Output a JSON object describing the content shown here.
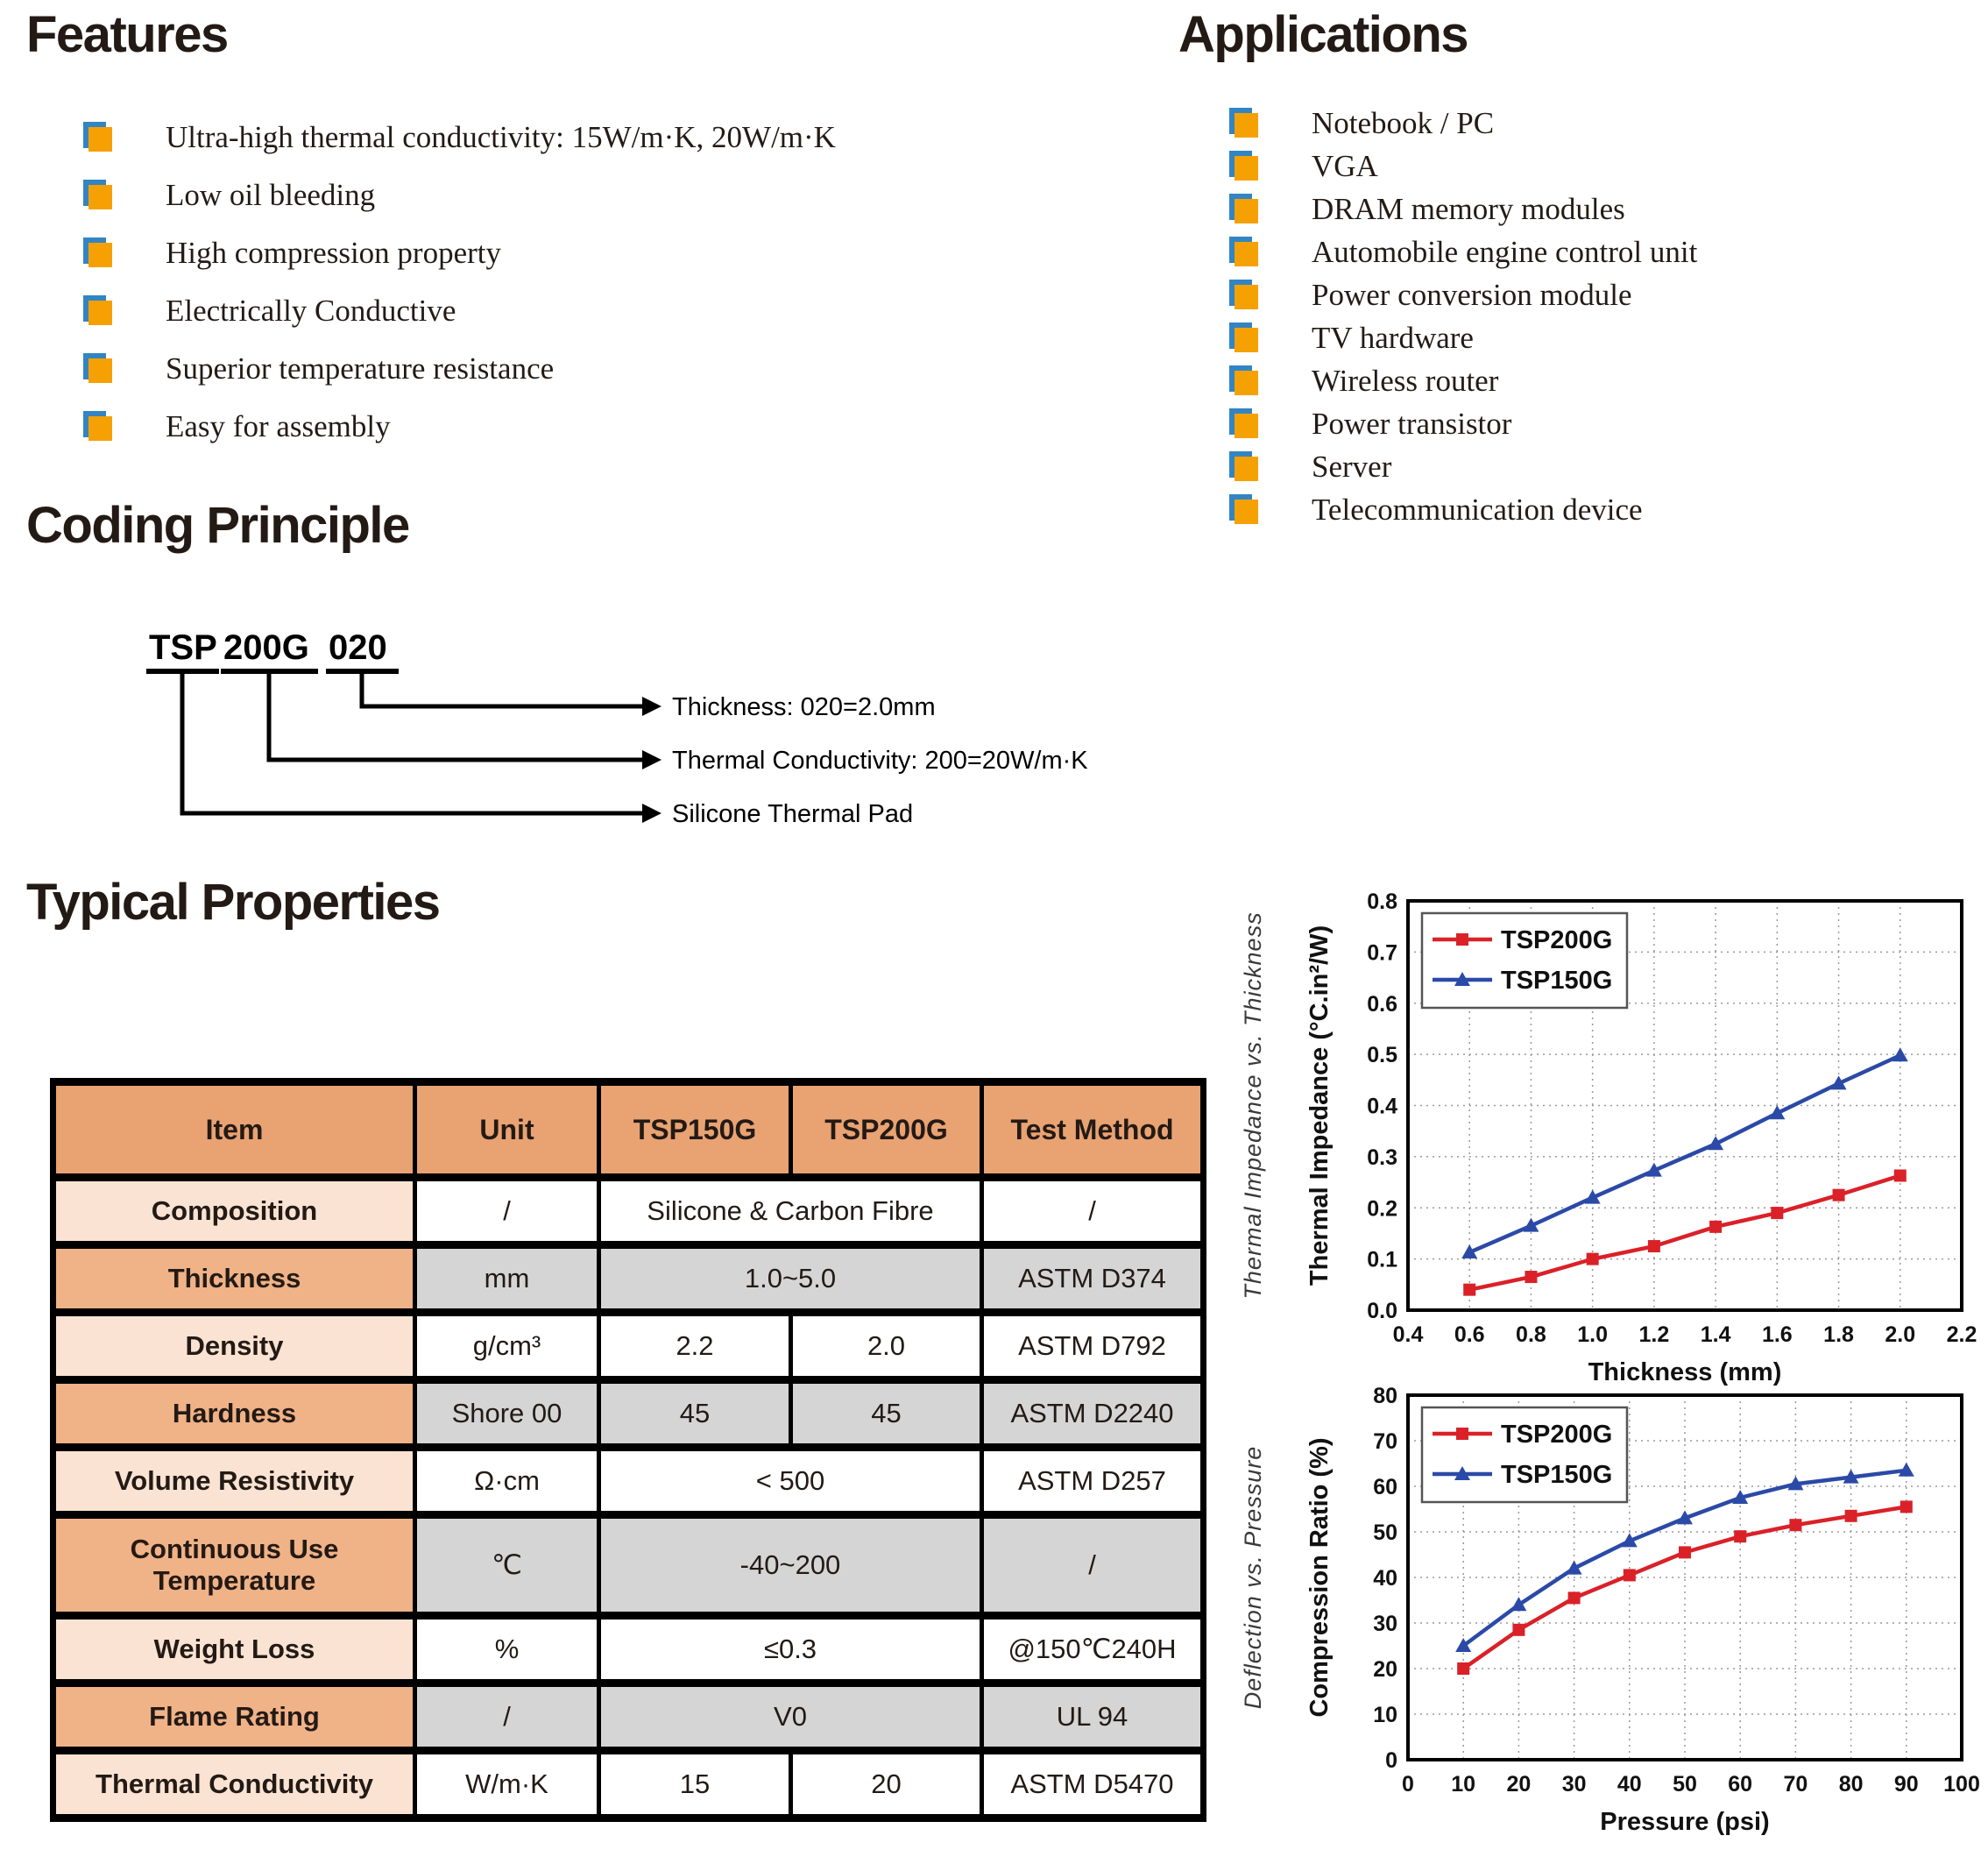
{
  "features": {
    "title": "Features",
    "items": [
      "Ultra-high thermal conductivity: 15W/m·K, 20W/m·K",
      "Low oil bleeding",
      "High compression property",
      "Electrically Conductive",
      "Superior temperature resistance",
      "Easy for assembly"
    ]
  },
  "applications": {
    "title": "Applications",
    "items": [
      "Notebook / PC",
      "VGA",
      "DRAM memory modules",
      "Automobile engine control unit",
      "Power conversion module",
      "TV hardware",
      "Wireless router",
      "Power transistor",
      "Server",
      "Telecommunication device"
    ]
  },
  "coding": {
    "title": "Coding Principle",
    "parts": [
      "TSP",
      "200G",
      "020"
    ],
    "labels": [
      "Thickness: 020=2.0mm",
      "Thermal Conductivity: 200=20W/m·K",
      "Silicone Thermal Pad"
    ]
  },
  "properties": {
    "title": "Typical Properties",
    "headers": [
      "Item",
      "Unit",
      "TSP150G",
      "TSP200G",
      "Test Method"
    ],
    "rows": [
      {
        "item": "Composition",
        "unit": "/",
        "value": "Silicone & Carbon Fibre",
        "test": "/"
      },
      {
        "item": "Thickness",
        "unit": "mm",
        "value": "1.0~5.0",
        "test": "ASTM D374"
      },
      {
        "item": "Density",
        "unit": "g/cm³",
        "tsp150g": "2.2",
        "tsp200g": "2.0",
        "test": "ASTM D792"
      },
      {
        "item": "Hardness",
        "unit": "Shore 00",
        "tsp150g": "45",
        "tsp200g": "45",
        "test": "ASTM D2240"
      },
      {
        "item": "Volume Resistivity",
        "unit": "Ω·cm",
        "value": "< 500",
        "test": "ASTM D257"
      },
      {
        "item": "Continuous Use Temperature",
        "unit": "℃",
        "value": "-40~200",
        "test": "/"
      },
      {
        "item": "Weight Loss",
        "unit": "%",
        "value": "≤0.3",
        "test": "@150℃240H"
      },
      {
        "item": "Flame Rating",
        "unit": "/",
        "value": "V0",
        "test": "UL 94"
      },
      {
        "item": "Thermal Conductivity",
        "unit": "W/m·K",
        "tsp150g": "15",
        "tsp200g": "20",
        "test": "ASTM D5470"
      }
    ]
  },
  "colors": {
    "bullet_orange": "#f5a104",
    "bullet_blue": "#3285c2",
    "table_header": "#e9a272",
    "row_item_light": "#fae3d2",
    "row_item_dark": "#f0b287",
    "cell_gray": "#d5d5d5",
    "series_red": "#da2128",
    "series_blue": "#2b4aa7"
  },
  "chart_data": [
    {
      "type": "line",
      "outer_label": "Thermal Impedance vs.  Thickness",
      "x_axis": {
        "label": "Thickness (mm)",
        "min": 0.4,
        "max": 2.2,
        "ticks": [
          "0.4",
          "0.6",
          "0.8",
          "1.0",
          "1.2",
          "1.4",
          "1.6",
          "1.8",
          "2.0",
          "2.2"
        ]
      },
      "y_axis": {
        "label": "Thermal Impedance (°C.in²/W)",
        "min": 0,
        "max": 0.8,
        "ticks": [
          "0.0",
          "0.1",
          "0.2",
          "0.3",
          "0.4",
          "0.5",
          "0.6",
          "0.7",
          "0.8"
        ]
      },
      "grid": true,
      "legend_position": "top-left",
      "series": [
        {
          "name": "TSP200G",
          "color": "#da2128",
          "marker": "square",
          "x": [
            0.6,
            0.8,
            1.0,
            1.2,
            1.4,
            1.6,
            1.8,
            2.0
          ],
          "y": [
            0.04,
            0.065,
            0.1,
            0.125,
            0.163,
            0.19,
            0.225,
            0.263
          ]
        },
        {
          "name": "TSP150G",
          "color": "#2b4aa7",
          "marker": "triangle",
          "x": [
            0.6,
            0.8,
            1.0,
            1.2,
            1.4,
            1.6,
            1.8,
            2.0
          ],
          "y": [
            0.113,
            0.165,
            0.22,
            0.273,
            0.325,
            0.385,
            0.443,
            0.498
          ]
        }
      ]
    },
    {
      "type": "line",
      "outer_label": "Deflection vs.  Pressure",
      "x_axis": {
        "label": "Pressure (psi)",
        "min": 0,
        "max": 100,
        "ticks": [
          "0",
          "10",
          "20",
          "30",
          "40",
          "50",
          "60",
          "70",
          "80",
          "90",
          "100"
        ]
      },
      "y_axis": {
        "label": "Compression Ratio (%)",
        "min": 0,
        "max": 80,
        "ticks": [
          "0",
          "10",
          "20",
          "30",
          "40",
          "50",
          "60",
          "70",
          "80"
        ]
      },
      "grid": true,
      "legend_position": "top-left",
      "series": [
        {
          "name": "TSP200G",
          "color": "#da2128",
          "marker": "square",
          "x": [
            10,
            20,
            30,
            40,
            50,
            60,
            70,
            80,
            90
          ],
          "y": [
            20,
            28.5,
            35.5,
            40.5,
            45.5,
            49,
            51.5,
            53.5,
            55.5
          ]
        },
        {
          "name": "TSP150G",
          "color": "#2b4aa7",
          "marker": "triangle",
          "x": [
            10,
            20,
            30,
            40,
            50,
            60,
            70,
            80,
            90
          ],
          "y": [
            25,
            34,
            42,
            48,
            53,
            57.5,
            60.5,
            62,
            63.5
          ]
        }
      ]
    }
  ]
}
